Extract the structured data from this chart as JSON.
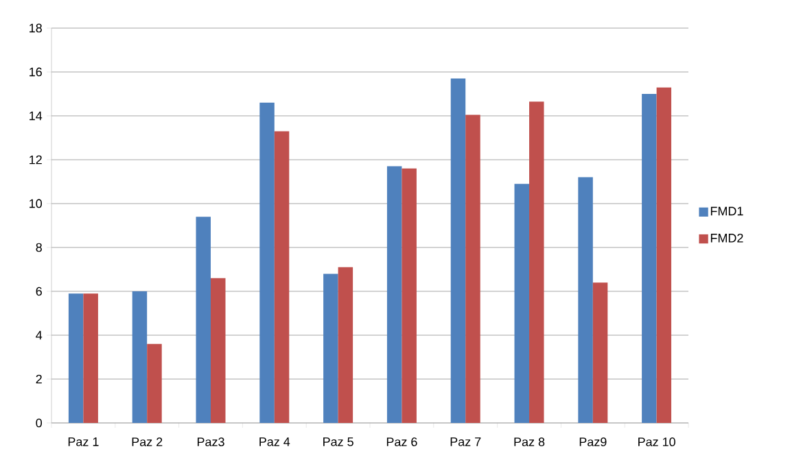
{
  "chart_data": {
    "type": "bar",
    "categories": [
      "Paz 1",
      "Paz 2",
      "Paz3",
      "Paz 4",
      "Paz 5",
      "Paz 6",
      "Paz 7",
      "Paz 8",
      "Paz9",
      "Paz 10"
    ],
    "series": [
      {
        "name": "FMD1",
        "color": "#4f81bd",
        "values": [
          5.9,
          6.0,
          9.4,
          14.6,
          6.8,
          11.7,
          15.7,
          10.9,
          11.2,
          15.0
        ]
      },
      {
        "name": "FMD2",
        "color": "#c0504d",
        "values": [
          5.9,
          3.6,
          6.6,
          13.3,
          7.1,
          11.6,
          14.05,
          14.65,
          6.4,
          15.3
        ]
      }
    ],
    "ylim": [
      0,
      18
    ],
    "yticks": [
      0,
      2,
      4,
      6,
      8,
      10,
      12,
      14,
      16,
      18
    ],
    "grid": "y",
    "legend": "right"
  }
}
